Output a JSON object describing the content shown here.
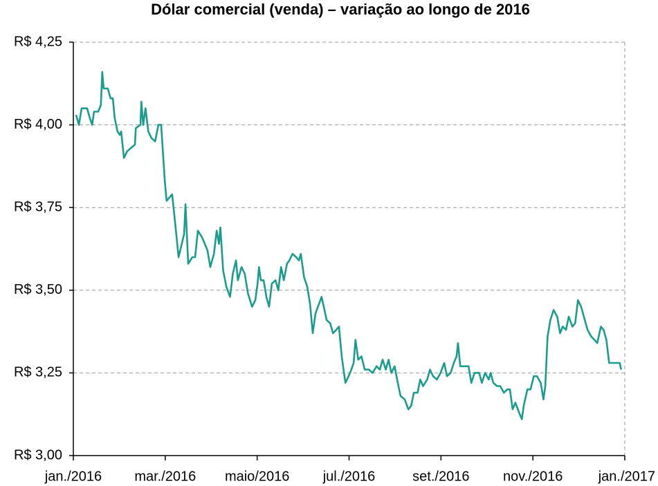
{
  "chart_data": {
    "type": "line",
    "title": "Dólar comercial (venda) – variação ao longo de 2016",
    "color": "#1a9c8c",
    "grid": true,
    "xlim": [
      0,
      12
    ],
    "xticks": [
      {
        "value": 0,
        "label": "jan./2016"
      },
      {
        "value": 2,
        "label": "mar./2016"
      },
      {
        "value": 4,
        "label": "maio/2016"
      },
      {
        "value": 6,
        "label": "jul./2016"
      },
      {
        "value": 8,
        "label": "set./2016"
      },
      {
        "value": 10,
        "label": "nov./2016"
      },
      {
        "value": 12,
        "label": "jan./2017"
      }
    ],
    "ylim": [
      3.0,
      4.25
    ],
    "yticks": [
      {
        "value": 3.0,
        "label": "R$ 3,00"
      },
      {
        "value": 3.25,
        "label": "R$ 3,25"
      },
      {
        "value": 3.5,
        "label": "R$ 3,50"
      },
      {
        "value": 3.75,
        "label": "R$ 3,75"
      },
      {
        "value": 4.0,
        "label": "R$ 4,00"
      },
      {
        "value": 4.25,
        "label": "R$ 4,25"
      }
    ],
    "x": [
      0.06,
      0.12,
      0.18,
      0.24,
      0.3,
      0.36,
      0.41,
      0.45,
      0.54,
      0.6,
      0.63,
      0.66,
      0.75,
      0.81,
      0.86,
      0.9,
      0.96,
      1.01,
      1.04,
      1.1,
      1.17,
      1.34,
      1.36,
      1.46,
      1.48,
      1.52,
      1.57,
      1.63,
      1.7,
      1.78,
      1.85,
      1.91,
      1.99,
      2.03,
      2.09,
      2.15,
      2.21,
      2.29,
      2.36,
      2.41,
      2.44,
      2.5,
      2.59,
      2.65,
      2.71,
      2.8,
      2.86,
      2.92,
      2.98,
      3.06,
      3.12,
      3.17,
      3.2,
      3.26,
      3.33,
      3.41,
      3.47,
      3.54,
      3.58,
      3.66,
      3.73,
      3.8,
      3.89,
      3.96,
      4.01,
      4.04,
      4.08,
      4.14,
      4.2,
      4.26,
      4.32,
      4.4,
      4.46,
      4.52,
      4.58,
      4.65,
      4.7,
      4.77,
      4.85,
      4.91,
      4.95,
      5.02,
      5.09,
      5.15,
      5.21,
      5.27,
      5.35,
      5.4,
      5.45,
      5.51,
      5.59,
      5.65,
      5.72,
      5.78,
      5.84,
      5.92,
      5.99,
      6.05,
      6.1,
      6.14,
      6.2,
      6.27,
      6.34,
      6.43,
      6.51,
      6.6,
      6.67,
      6.73,
      6.8,
      6.86,
      6.92,
      6.99,
      7.06,
      7.12,
      7.21,
      7.29,
      7.35,
      7.41,
      7.49,
      7.55,
      7.61,
      7.7,
      7.76,
      7.83,
      7.91,
      7.99,
      8.07,
      8.13,
      8.21,
      8.28,
      8.34,
      8.37,
      8.42,
      8.49,
      8.6,
      8.66,
      8.73,
      8.83,
      8.89,
      8.96,
      9.04,
      9.08,
      9.14,
      9.22,
      9.29,
      9.37,
      9.44,
      9.5,
      9.56,
      9.62,
      9.7,
      9.76,
      9.8,
      9.88,
      9.95,
      10.02,
      10.09,
      10.17,
      10.23,
      10.27,
      10.32,
      10.38,
      10.45,
      10.53,
      10.59,
      10.65,
      10.72,
      10.78,
      10.86,
      10.92,
      10.98,
      11.05,
      11.13,
      11.19,
      11.27,
      11.34,
      11.4,
      11.48,
      11.54,
      11.6,
      11.66,
      11.73,
      11.81,
      11.89,
      11.92
    ],
    "values": [
      4.03,
      4.0,
      4.05,
      4.05,
      4.05,
      4.02,
      4.0,
      4.04,
      4.04,
      4.06,
      4.16,
      4.11,
      4.11,
      4.08,
      4.08,
      4.02,
      3.98,
      3.97,
      3.98,
      3.9,
      3.92,
      3.94,
      3.99,
      4.0,
      4.07,
      4.0,
      4.05,
      3.98,
      3.96,
      3.95,
      4.0,
      4.0,
      3.83,
      3.77,
      3.78,
      3.79,
      3.71,
      3.6,
      3.64,
      3.67,
      3.76,
      3.58,
      3.6,
      3.6,
      3.68,
      3.66,
      3.64,
      3.62,
      3.57,
      3.61,
      3.68,
      3.64,
      3.69,
      3.56,
      3.51,
      3.48,
      3.55,
      3.59,
      3.53,
      3.57,
      3.55,
      3.49,
      3.45,
      3.47,
      3.52,
      3.57,
      3.53,
      3.53,
      3.48,
      3.45,
      3.52,
      3.53,
      3.5,
      3.57,
      3.53,
      3.58,
      3.59,
      3.61,
      3.6,
      3.59,
      3.61,
      3.54,
      3.51,
      3.46,
      3.37,
      3.43,
      3.46,
      3.48,
      3.45,
      3.41,
      3.4,
      3.37,
      3.38,
      3.39,
      3.3,
      3.22,
      3.24,
      3.26,
      3.28,
      3.35,
      3.29,
      3.3,
      3.26,
      3.26,
      3.25,
      3.27,
      3.26,
      3.29,
      3.26,
      3.29,
      3.25,
      3.27,
      3.22,
      3.18,
      3.17,
      3.14,
      3.15,
      3.19,
      3.19,
      3.23,
      3.21,
      3.23,
      3.26,
      3.24,
      3.23,
      3.25,
      3.28,
      3.24,
      3.25,
      3.28,
      3.3,
      3.34,
      3.27,
      3.27,
      3.27,
      3.22,
      3.25,
      3.25,
      3.22,
      3.25,
      3.23,
      3.25,
      3.22,
      3.21,
      3.21,
      3.19,
      3.2,
      3.2,
      3.14,
      3.16,
      3.13,
      3.11,
      3.15,
      3.2,
      3.2,
      3.24,
      3.24,
      3.22,
      3.17,
      3.21,
      3.36,
      3.41,
      3.44,
      3.42,
      3.37,
      3.39,
      3.38,
      3.42,
      3.39,
      3.4,
      3.47,
      3.45,
      3.41,
      3.38,
      3.36,
      3.35,
      3.34,
      3.39,
      3.38,
      3.35,
      3.28,
      3.28,
      3.28,
      3.28,
      3.26
    ]
  }
}
